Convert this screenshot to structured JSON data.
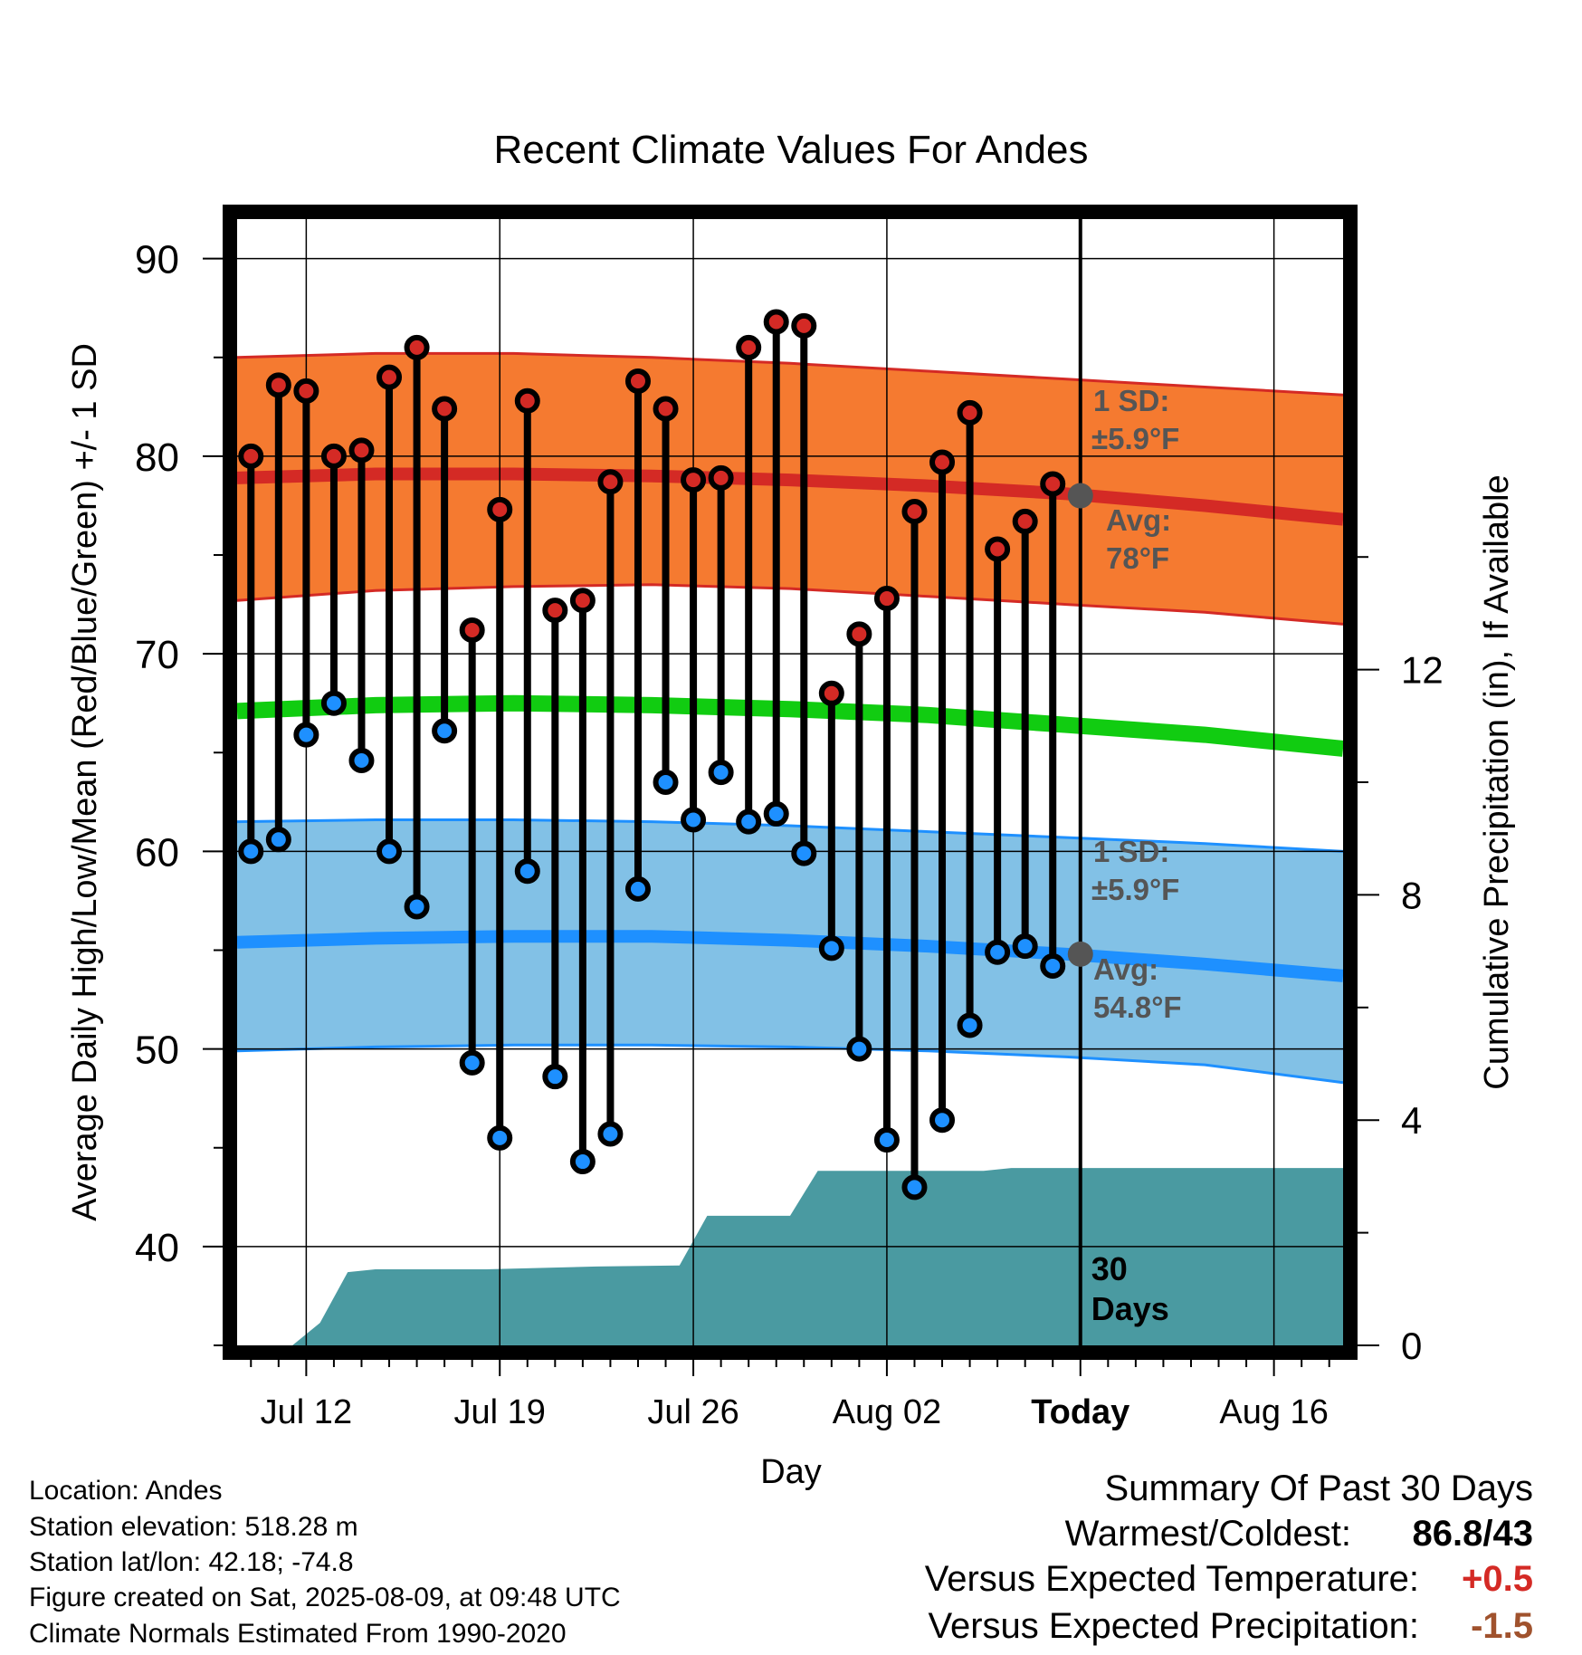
{
  "chart_data": {
    "type": "line",
    "title": "Recent Climate Values For Andes",
    "xlabel": "Day",
    "ylabel": "Average Daily High/Low/Mean (Red/Blue/Green) +/- 1 SD",
    "y2label": "Cumulative Precipitation (in), If Available",
    "x_range_day_offset": [
      -2.5,
      37.5
    ],
    "x_ticks": [
      {
        "label": "Jul 12",
        "day": 0
      },
      {
        "label": "Jul 19",
        "day": 7
      },
      {
        "label": "Jul 26",
        "day": 14
      },
      {
        "label": "Aug 02",
        "day": 21
      },
      {
        "label": "Today",
        "day": 28
      },
      {
        "label": "Aug 16",
        "day": 35
      }
    ],
    "ylim": [
      35,
      92
    ],
    "y_ticks": [
      40,
      50,
      60,
      70,
      80,
      90
    ],
    "y2lim": [
      0,
      20
    ],
    "y2_ticks": [
      0,
      4,
      8,
      12
    ],
    "grid": true,
    "today_marker": {
      "day": 28,
      "label_line1": "30",
      "label_line2": "Days"
    },
    "days": [
      -2,
      -1,
      0,
      1,
      2,
      3,
      4,
      5,
      6,
      7,
      8,
      9,
      10,
      11,
      12,
      13,
      14,
      15,
      16,
      17,
      18,
      19,
      20,
      21,
      22,
      23,
      24,
      25,
      26,
      27
    ],
    "daily_high": [
      80,
      83.6,
      83.3,
      80,
      80.3,
      84,
      85.5,
      82.4,
      71.2,
      77.3,
      82.8,
      72.2,
      72.7,
      78.7,
      83.8,
      82.4,
      78.8,
      78.9,
      85.5,
      86.8,
      86.6,
      68,
      71,
      72.8,
      77.2,
      79.7,
      82.2,
      75.3,
      76.7,
      78.6
    ],
    "daily_low": [
      60,
      60.6,
      65.9,
      67.5,
      64.6,
      60,
      57.2,
      66.1,
      49.3,
      45.5,
      59,
      48.6,
      44.3,
      45.7,
      58.1,
      63.5,
      61.6,
      64,
      61.5,
      61.9,
      59.9,
      55.1,
      50,
      45.4,
      43,
      46.4,
      51.2,
      54.9,
      55.2,
      54.2
    ],
    "normal_days": [
      -2.5,
      2.5,
      7.5,
      12.5,
      17.5,
      22.5,
      27.5,
      32.5,
      37.5
    ],
    "normal_high_avg": [
      78.9,
      79.1,
      79.1,
      79,
      78.8,
      78.5,
      78.1,
      77.5,
      76.8
    ],
    "normal_high_upper": [
      85,
      85.2,
      85.2,
      85,
      84.7,
      84.3,
      83.9,
      83.5,
      83.1
    ],
    "normal_high_lower": [
      72.7,
      73.2,
      73.4,
      73.5,
      73.3,
      72.9,
      72.5,
      72.1,
      71.5
    ],
    "normal_mean": [
      67.1,
      67.4,
      67.5,
      67.4,
      67.2,
      66.9,
      66.4,
      65.9,
      65.2
    ],
    "normal_low_avg": [
      55.4,
      55.6,
      55.7,
      55.7,
      55.5,
      55.2,
      54.8,
      54.3,
      53.7
    ],
    "normal_low_upper": [
      61.5,
      61.6,
      61.6,
      61.5,
      61.3,
      61,
      60.7,
      60.4,
      60
    ],
    "normal_low_lower": [
      49.9,
      50.1,
      50.2,
      50.2,
      50.1,
      49.9,
      49.6,
      49.2,
      48.3
    ],
    "precip_days": [
      -2.5,
      -1.5,
      -0.5,
      0.5,
      1.5,
      2.5,
      3.5,
      6.5,
      10.5,
      13.5,
      14.5,
      15.5,
      16.5,
      17.5,
      18.5,
      19.5,
      20.5,
      24.5,
      25.5,
      27.5,
      37.5
    ],
    "precip_cumulative": [
      0,
      0,
      0,
      0.4,
      1.3,
      1.35,
      1.35,
      1.35,
      1.4,
      1.42,
      2.3,
      2.3,
      2.3,
      2.3,
      3.1,
      3.1,
      3.1,
      3.1,
      3.15,
      3.15,
      3.15
    ],
    "annotations": {
      "high_sd_label": "1 SD:",
      "high_sd_value": "±5.9°F",
      "high_avg_label": "Avg:",
      "high_avg_value": "78°F",
      "low_sd_label": "1 SD:",
      "low_sd_value": "±5.9°F",
      "low_avg_label": "Avg:",
      "low_avg_value": "54.8°F",
      "today_high_avg": 78,
      "today_low_avg": 54.8
    },
    "colors": {
      "high_band": "#f57a30",
      "high_line": "#d42a25",
      "mean_line": "#11cc11",
      "low_band": "#82c1e6",
      "low_line": "#1e90ff",
      "precip": "#4a9aa1",
      "high_dot": "#d42a25",
      "low_dot": "#1e90ff",
      "annotation": "#555555"
    }
  },
  "footer": {
    "location": "Location: Andes",
    "elevation": "Station elevation: 518.28 m",
    "latlon": "Station lat/lon: 42.18; -74.8",
    "created": "Figure created on Sat, 2025-08-09, at 09:48 UTC",
    "normals": "Climate Normals Estimated From 1990-2020"
  },
  "summary": {
    "title": "Summary Of Past 30 Days",
    "warm_cold_label": "Warmest/Coldest:",
    "warmest": "86.8",
    "coldest": "/43",
    "temp_label": "Versus Expected Temperature:",
    "temp_value": "+0.5",
    "temp_color": "#d42a25",
    "precip_label": "Versus Expected Precipitation:",
    "precip_value": "-1.5",
    "precip_color": "#a0522d"
  }
}
